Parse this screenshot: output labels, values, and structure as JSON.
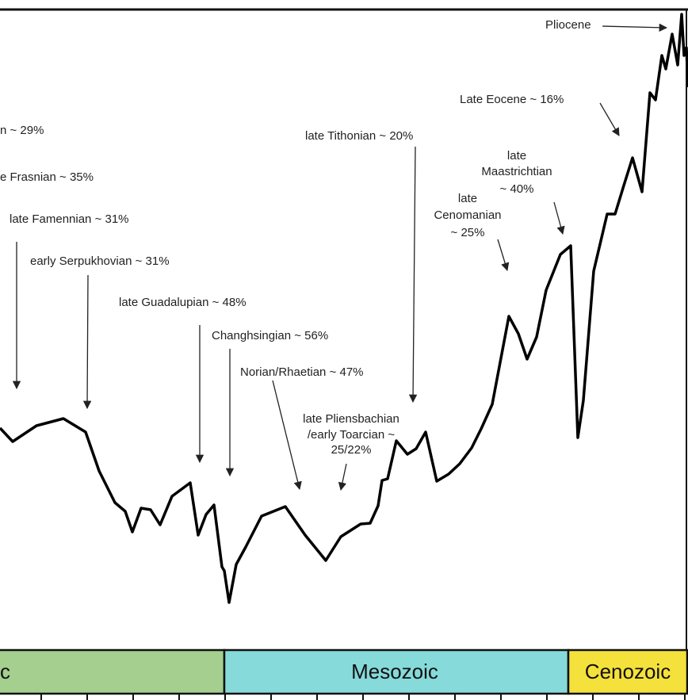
{
  "annotations": {
    "a1": "n ~ 29%",
    "a2": "e Frasnian ~ 35%",
    "a3": "late Famennian ~ 31%",
    "a4": "early Serpukhovian ~ 31%",
    "a5": "late Guadalupian ~ 48%",
    "a6": "Changhsingian ~ 56%",
    "a7": "Norian/Rhaetian ~ 47%",
    "a8": [
      "late Pliensbachian",
      "/early Toarcian ~",
      "25/22%"
    ],
    "a9": "late Tithonian ~ 20%",
    "a10": [
      "late",
      "Cenomanian",
      "~ 25%"
    ],
    "a11": [
      "late",
      "Maastrichtian",
      "~ 40%"
    ],
    "a12": "Late Eocene ~ 16%",
    "a13": "Pliocene"
  },
  "eras": [
    "c",
    "Mesozoic",
    "Cenozoic"
  ]
}
